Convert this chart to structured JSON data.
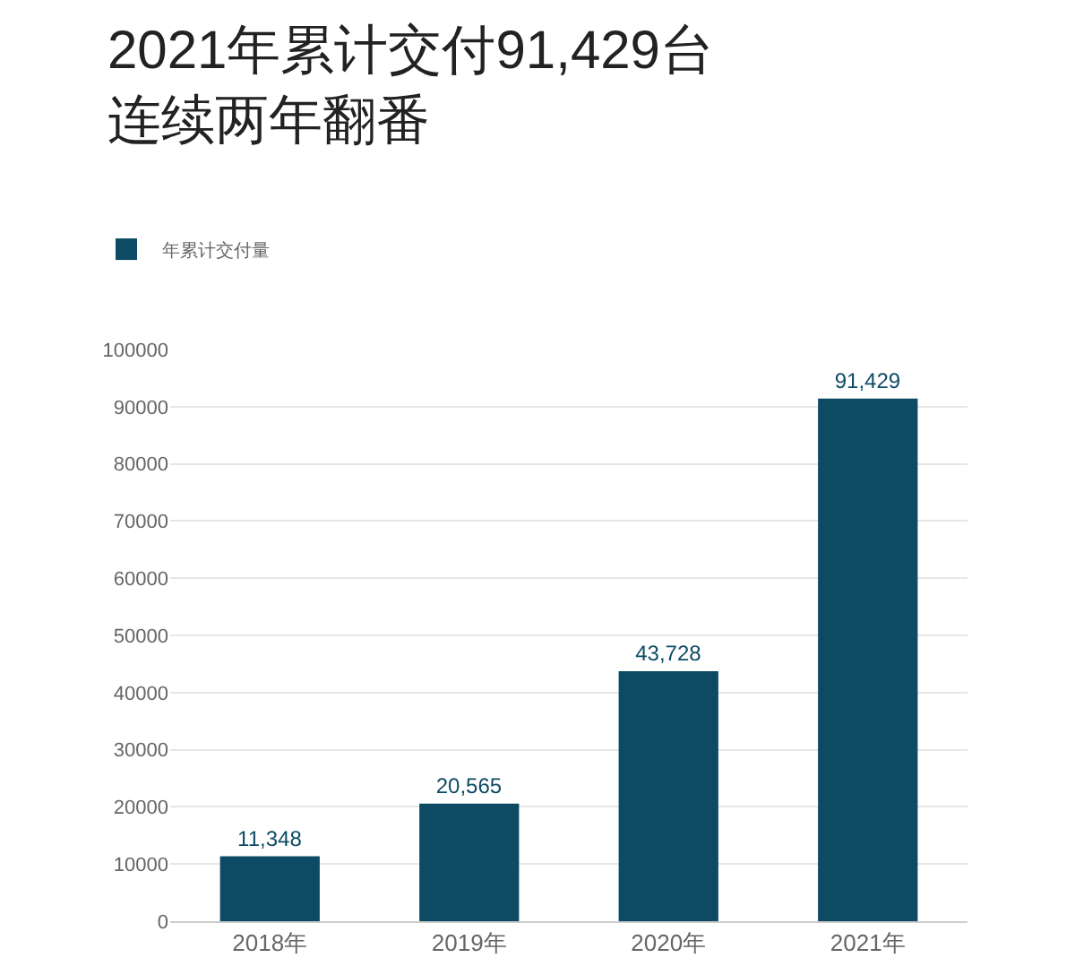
{
  "chart_data": {
    "type": "bar",
    "title": "2021年累计交付91,429台",
    "subtitle": "连续两年翻番",
    "categories": [
      "2018年",
      "2019年",
      "2020年",
      "2021年"
    ],
    "series": [
      {
        "name": "年累计交付量",
        "color": "#0d4b64",
        "values": [
          11348,
          20565,
          43728,
          91429
        ]
      }
    ],
    "value_labels": [
      "11,348",
      "20,565",
      "43,728",
      "91,429"
    ],
    "ylim": [
      0,
      100000
    ],
    "yticks": [
      0,
      10000,
      20000,
      30000,
      40000,
      50000,
      60000,
      70000,
      80000,
      90000,
      100000
    ],
    "grid": "y",
    "legend": "top left"
  }
}
